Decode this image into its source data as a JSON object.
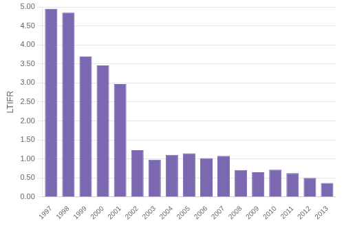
{
  "chart_data": {
    "type": "bar",
    "categories": [
      "1997",
      "1998",
      "1999",
      "2000",
      "2001",
      "2002",
      "2003",
      "2004",
      "2005",
      "2006",
      "2007",
      "2008",
      "2009",
      "2010",
      "2011",
      "2012",
      "2013"
    ],
    "values": [
      4.95,
      4.85,
      3.7,
      3.46,
      2.97,
      1.23,
      0.98,
      1.11,
      1.15,
      1.02,
      1.08,
      0.71,
      0.65,
      0.72,
      0.63,
      0.5,
      0.37
    ],
    "color": "#7B68B0",
    "ylabel": "LTIFR",
    "ylim": [
      0.0,
      5.0
    ],
    "yticks": [
      {
        "value": 0.0,
        "label": "0.00"
      },
      {
        "value": 0.5,
        "label": "0.50"
      },
      {
        "value": 1.0,
        "label": "1.00"
      },
      {
        "value": 1.5,
        "label": "1.50"
      },
      {
        "value": 2.0,
        "label": "2.00"
      },
      {
        "value": 2.5,
        "label": "2.50"
      },
      {
        "value": 3.0,
        "label": "3.00"
      },
      {
        "value": 3.5,
        "label": "3.50"
      },
      {
        "value": 4.0,
        "label": "4.00"
      },
      {
        "value": 4.5,
        "label": "4.50"
      },
      {
        "value": 5.0,
        "label": "5.00"
      }
    ],
    "grid": true
  }
}
